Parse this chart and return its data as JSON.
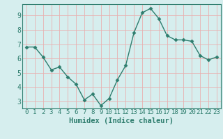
{
  "xlabel": "Humidex (Indice chaleur)",
  "x": [
    0,
    1,
    2,
    3,
    4,
    5,
    6,
    7,
    8,
    9,
    10,
    11,
    12,
    13,
    14,
    15,
    16,
    17,
    18,
    19,
    20,
    21,
    22,
    23
  ],
  "y": [
    6.8,
    6.8,
    6.1,
    5.2,
    5.4,
    4.7,
    4.2,
    3.1,
    3.5,
    2.7,
    3.2,
    4.5,
    5.5,
    7.8,
    9.2,
    9.5,
    8.8,
    7.6,
    7.3,
    7.3,
    7.2,
    6.2,
    5.9,
    6.1
  ],
  "line_color": "#2e7d6e",
  "marker": "D",
  "marker_size": 2.5,
  "bg_color": "#d6eeee",
  "grid_color": "#e8b0b0",
  "tick_label_color": "#2e7d6e",
  "ylim": [
    2.5,
    9.8
  ],
  "yticks": [
    3,
    4,
    5,
    6,
    7,
    8,
    9
  ],
  "xlim": [
    -0.5,
    23.5
  ],
  "xlabel_fontsize": 7.5,
  "tick_fontsize": 6.5
}
